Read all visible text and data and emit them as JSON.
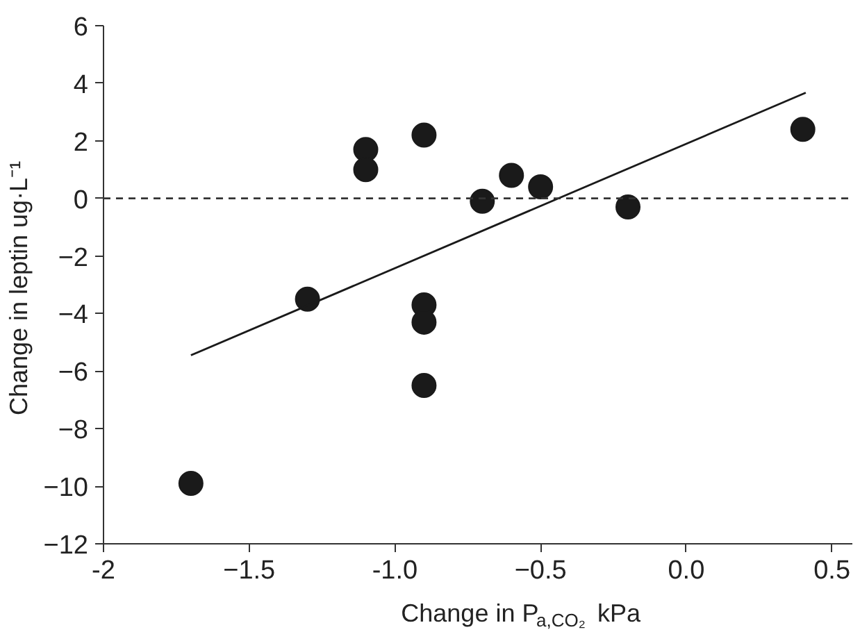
{
  "chart_data": {
    "type": "scatter",
    "xlabel": "Change in P$_{a,CO₂}$  kPa",
    "ylabel": "Change in leptin  ug·L⁻¹",
    "xlim": [
      -2,
      0.57
    ],
    "ylim": [
      -12,
      6
    ],
    "xticks": [
      {
        "value": -2,
        "label": "-2"
      },
      -1.5,
      {
        "value": -1,
        "label": "-1.0"
      },
      -0.5,
      {
        "value": 0,
        "label": "0.0"
      },
      0.5
    ],
    "yticks": [
      -12,
      -10,
      -8,
      -6,
      -4,
      -2,
      0,
      2,
      4,
      6
    ],
    "grid": false,
    "ref_lines": [
      {
        "axis": "y",
        "value": 0,
        "color": "#333333",
        "line_style": "dashed"
      }
    ],
    "series": [
      {
        "marker": "circle",
        "color": "#1a1a1a",
        "x": [
          -1.7,
          -1.3,
          -1.1,
          -1.1,
          -0.9,
          -0.9,
          -0.9,
          -0.9,
          -0.7,
          -0.6,
          -0.5,
          -0.2,
          0.4
        ],
        "values": [
          -9.9,
          -3.5,
          1.7,
          1.0,
          2.2,
          -3.7,
          -4.3,
          -6.5,
          -0.1,
          0.8,
          0.4,
          -0.3,
          2.4
        ]
      },
      {
        "type": "line",
        "color": "#1a1a1a",
        "line_style": "solid",
        "x": [
          -1.7,
          0.41
        ],
        "values": [
          -5.45,
          3.67
        ]
      }
    ]
  }
}
